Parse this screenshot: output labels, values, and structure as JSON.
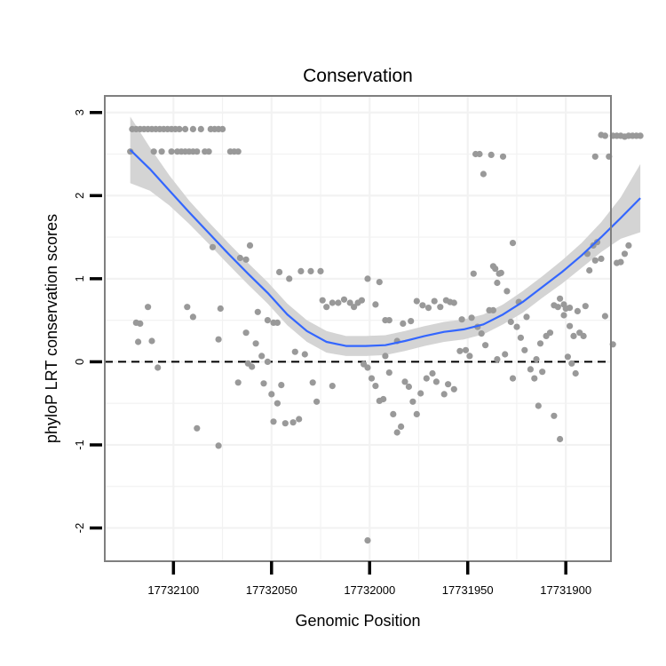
{
  "chart_data": {
    "type": "scatter",
    "title": "Conservation",
    "xlabel": "Genomic Position",
    "ylabel": "phyloP LRT conservation scores",
    "x_reversed": true,
    "xlim": [
      17732135,
      17731877
    ],
    "ylim": [
      -2.4,
      3.2
    ],
    "x_ticks": [
      17732100,
      17732050,
      17732000,
      17731950,
      17731900
    ],
    "x_tick_labels": [
      "17732100",
      "17732050",
      "17732000",
      "17731950",
      "17731900"
    ],
    "y_ticks": [
      -2,
      -1,
      0,
      1,
      2,
      3
    ],
    "y_tick_labels": [
      "-2",
      "-1",
      "0",
      "1",
      "2",
      "3"
    ],
    "grid": true,
    "reference_line": {
      "y": 0,
      "style": "dashed"
    },
    "colors": {
      "points": "#999999",
      "smooth": "#3366ff",
      "band": "#d4d4d4",
      "frame": "#7f7f7f",
      "grid": "#f2f2f2"
    },
    "points": [
      [
        17732121,
        2.8
      ],
      [
        17732119,
        2.8
      ],
      [
        17732117,
        2.8
      ],
      [
        17732115,
        2.8
      ],
      [
        17732113,
        2.8
      ],
      [
        17732111,
        2.8
      ],
      [
        17732109,
        2.8
      ],
      [
        17732107,
        2.8
      ],
      [
        17732105,
        2.8
      ],
      [
        17732103,
        2.8
      ],
      [
        17732101,
        2.8
      ],
      [
        17732099,
        2.8
      ],
      [
        17732097,
        2.8
      ],
      [
        17732094,
        2.8
      ],
      [
        17732090,
        2.8
      ],
      [
        17732086,
        2.8
      ],
      [
        17732081,
        2.8
      ],
      [
        17732079,
        2.8
      ],
      [
        17732077,
        2.8
      ],
      [
        17732075,
        2.8
      ],
      [
        17732122,
        2.53
      ],
      [
        17732110,
        2.53
      ],
      [
        17732106,
        2.53
      ],
      [
        17732101,
        2.53
      ],
      [
        17732098,
        2.53
      ],
      [
        17732096,
        2.53
      ],
      [
        17732094,
        2.53
      ],
      [
        17732092,
        2.53
      ],
      [
        17732090,
        2.53
      ],
      [
        17732088,
        2.53
      ],
      [
        17732084,
        2.53
      ],
      [
        17732082,
        2.53
      ],
      [
        17732071,
        2.53
      ],
      [
        17732069,
        2.53
      ],
      [
        17732067,
        2.53
      ],
      [
        17732119,
        0.47
      ],
      [
        17732117,
        0.46
      ],
      [
        17732113,
        0.66
      ],
      [
        17732118,
        0.24
      ],
      [
        17732111,
        0.25
      ],
      [
        17732108,
        -0.07
      ],
      [
        17732093,
        0.66
      ],
      [
        17732090,
        0.54
      ],
      [
        17732088,
        -0.8
      ],
      [
        17732080,
        1.38
      ],
      [
        17732077,
        0.27
      ],
      [
        17732077,
        -1.01
      ],
      [
        17732076,
        0.64
      ],
      [
        17732066,
        1.25
      ],
      [
        17732063,
        1.23
      ],
      [
        17732061,
        1.4
      ],
      [
        17732057,
        0.6
      ],
      [
        17732052,
        0.5
      ],
      [
        17732049,
        0.47
      ],
      [
        17732047,
        0.47
      ],
      [
        17732046,
        1.08
      ],
      [
        17732041,
        1.0
      ],
      [
        17732035,
        1.09
      ],
      [
        17732030,
        1.09
      ],
      [
        17732025,
        1.09
      ],
      [
        17732063,
        0.35
      ],
      [
        17732058,
        0.22
      ],
      [
        17732055,
        0.07
      ],
      [
        17732052,
        0.0
      ],
      [
        17732062,
        -0.02
      ],
      [
        17732067,
        -0.25
      ],
      [
        17732060,
        -0.06
      ],
      [
        17732054,
        -0.26
      ],
      [
        17732050,
        -0.39
      ],
      [
        17732045,
        -0.28
      ],
      [
        17732049,
        -0.72
      ],
      [
        17732047,
        -0.5
      ],
      [
        17732043,
        -0.74
      ],
      [
        17732039,
        -0.73
      ],
      [
        17732036,
        -0.69
      ],
      [
        17732033,
        0.09
      ],
      [
        17732038,
        0.12
      ],
      [
        17732029,
        -0.25
      ],
      [
        17732027,
        -0.48
      ],
      [
        17732019,
        -0.29
      ],
      [
        17732024,
        0.74
      ],
      [
        17732022,
        0.66
      ],
      [
        17732019,
        0.71
      ],
      [
        17732016,
        0.71
      ],
      [
        17732013,
        0.75
      ],
      [
        17732010,
        0.71
      ],
      [
        17732008,
        0.66
      ],
      [
        17732006,
        0.71
      ],
      [
        17732004,
        0.74
      ],
      [
        17732001,
        1.0
      ],
      [
        17731997,
        0.69
      ],
      [
        17731995,
        0.96
      ],
      [
        17731992,
        0.5
      ],
      [
        17731990,
        0.5
      ],
      [
        17731986,
        0.25
      ],
      [
        17731983,
        0.46
      ],
      [
        17731979,
        0.49
      ],
      [
        17731976,
        0.73
      ],
      [
        17731973,
        0.68
      ],
      [
        17731970,
        0.65
      ],
      [
        17731967,
        0.73
      ],
      [
        17731964,
        0.66
      ],
      [
        17731961,
        0.74
      ],
      [
        17731959,
        0.72
      ],
      [
        17731957,
        0.71
      ],
      [
        17731953,
        0.51
      ],
      [
        17732003,
        -0.03
      ],
      [
        17732001,
        -0.07
      ],
      [
        17731999,
        -0.2
      ],
      [
        17731997,
        -0.29
      ],
      [
        17731995,
        -0.47
      ],
      [
        17731993,
        -0.45
      ],
      [
        17731992,
        0.07
      ],
      [
        17731990,
        -0.13
      ],
      [
        17731988,
        -0.63
      ],
      [
        17731986,
        -0.85
      ],
      [
        17731984,
        -0.78
      ],
      [
        17731982,
        -0.24
      ],
      [
        17731980,
        -0.3
      ],
      [
        17731978,
        -0.48
      ],
      [
        17731976,
        -0.63
      ],
      [
        17731974,
        -0.38
      ],
      [
        17731971,
        -0.2
      ],
      [
        17731968,
        -0.14
      ],
      [
        17731966,
        -0.24
      ],
      [
        17731962,
        -0.39
      ],
      [
        17731960,
        -0.27
      ],
      [
        17731957,
        -0.33
      ],
      [
        17732001,
        -2.15
      ],
      [
        17731947,
        1.06
      ],
      [
        17731945,
        0.42
      ],
      [
        17731943,
        0.34
      ],
      [
        17731941,
        0.2
      ],
      [
        17731939,
        0.62
      ],
      [
        17731937,
        0.62
      ],
      [
        17731951,
        0.14
      ],
      [
        17731949,
        0.07
      ],
      [
        17731954,
        0.13
      ],
      [
        17731948,
        0.53
      ],
      [
        17731935,
        0.03
      ],
      [
        17731931,
        0.09
      ],
      [
        17731927,
        -0.2
      ],
      [
        17731933,
        1.07
      ],
      [
        17731930,
        0.85
      ],
      [
        17731928,
        0.48
      ],
      [
        17731925,
        0.42
      ],
      [
        17731923,
        0.29
      ],
      [
        17731921,
        0.14
      ],
      [
        17731918,
        -0.09
      ],
      [
        17731915,
        0.03
      ],
      [
        17731913,
        0.22
      ],
      [
        17731908,
        0.35
      ],
      [
        17731906,
        0.68
      ],
      [
        17731903,
        0.76
      ],
      [
        17731901,
        0.56
      ],
      [
        17731899,
        0.06
      ],
      [
        17731897,
        -0.02
      ],
      [
        17731895,
        -0.14
      ],
      [
        17731893,
        0.35
      ],
      [
        17731946,
        2.5
      ],
      [
        17731944,
        2.5
      ],
      [
        17731942,
        2.26
      ],
      [
        17731938,
        2.49
      ],
      [
        17731932,
        2.47
      ],
      [
        17731935,
        0.95
      ],
      [
        17731936,
        1.12
      ],
      [
        17731934,
        1.06
      ],
      [
        17731937,
        1.15
      ],
      [
        17731927,
        1.43
      ],
      [
        17731924,
        0.72
      ],
      [
        17731920,
        0.54
      ],
      [
        17731916,
        -0.2
      ],
      [
        17731914,
        -0.53
      ],
      [
        17731910,
        0.31
      ],
      [
        17731912,
        -0.12
      ],
      [
        17731906,
        -0.65
      ],
      [
        17731903,
        -0.93
      ],
      [
        17731901,
        0.69
      ],
      [
        17731898,
        0.65
      ],
      [
        17731891,
        0.31
      ],
      [
        17731889,
        1.3
      ],
      [
        17731888,
        1.1
      ],
      [
        17731886,
        1.4
      ],
      [
        17731884,
        1.44
      ],
      [
        17731904,
        0.66
      ],
      [
        17731900,
        0.64
      ],
      [
        17731898,
        0.43
      ],
      [
        17731896,
        0.31
      ],
      [
        17731894,
        0.61
      ],
      [
        17731890,
        0.67
      ],
      [
        17731885,
        1.22
      ],
      [
        17731882,
        1.24
      ],
      [
        17731880,
        0.55
      ],
      [
        17731876,
        0.21
      ],
      [
        17731874,
        1.19
      ],
      [
        17731872,
        1.2
      ],
      [
        17731870,
        1.3
      ],
      [
        17731868,
        1.4
      ],
      [
        17731885,
        2.47
      ],
      [
        17731882,
        2.73
      ],
      [
        17731880,
        2.72
      ],
      [
        17731878,
        2.47
      ],
      [
        17731876,
        2.72
      ],
      [
        17731874,
        2.72
      ],
      [
        17731872,
        2.72
      ],
      [
        17731870,
        2.71
      ],
      [
        17731868,
        2.72
      ],
      [
        17731866,
        2.72
      ],
      [
        17731864,
        2.72
      ],
      [
        17731862,
        2.72
      ]
    ],
    "smooth_x": [
      17732122,
      17732112,
      17732102,
      17732092,
      17732082,
      17732072,
      17732062,
      17732052,
      17732042,
      17732032,
      17732022,
      17732012,
      17732002,
      17731992,
      17731982,
      17731972,
      17731962,
      17731952,
      17731942,
      17731932,
      17731922,
      17731912,
      17731902,
      17731892,
      17731882,
      17731872,
      17731862
    ],
    "smooth_y": [
      2.55,
      2.32,
      2.06,
      1.8,
      1.55,
      1.3,
      1.06,
      0.83,
      0.57,
      0.37,
      0.24,
      0.19,
      0.19,
      0.2,
      0.25,
      0.31,
      0.36,
      0.39,
      0.45,
      0.57,
      0.72,
      0.9,
      1.08,
      1.28,
      1.5,
      1.73,
      1.97
    ],
    "band_half_width": [
      0.4,
      0.26,
      0.18,
      0.14,
      0.13,
      0.13,
      0.13,
      0.13,
      0.13,
      0.13,
      0.13,
      0.12,
      0.12,
      0.12,
      0.12,
      0.12,
      0.12,
      0.12,
      0.12,
      0.12,
      0.13,
      0.13,
      0.14,
      0.15,
      0.18,
      0.25,
      0.41
    ]
  }
}
